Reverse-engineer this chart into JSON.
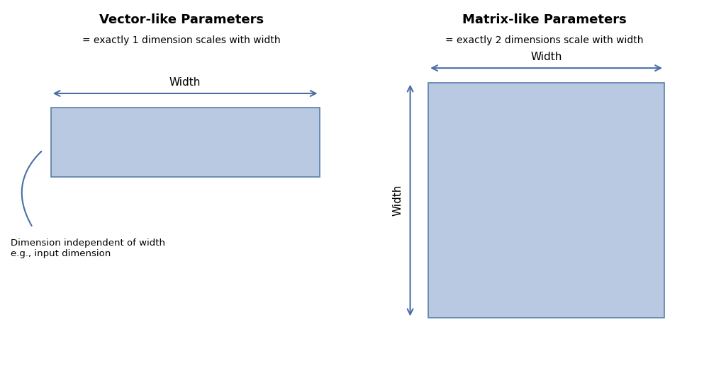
{
  "bg_color": "#ffffff",
  "rect_fill": "#b8c9e1",
  "rect_edge": "#5a7faa",
  "arrow_color": "#4a6fa5",
  "text_color": "#000000",
  "left_title": "Vector-like Parameters",
  "left_subtitle": "= exactly 1 dimension scales with width",
  "right_title": "Matrix-like Parameters",
  "right_subtitle": "= exactly 2 dimensions scale with width",
  "width_label": "Width",
  "left_dim_label": "Dimension independent of width\ne.g., input dimension",
  "right_side_label": "Width"
}
